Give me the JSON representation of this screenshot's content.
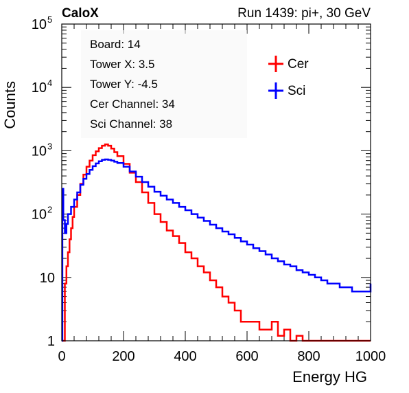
{
  "header": {
    "experiment": "CaloX",
    "run_info": "Run 1439: pi+, 30 GeV"
  },
  "info_box": {
    "lines": [
      "Board: 14",
      "Tower X: 3.5",
      "Tower Y: -4.5",
      "Cer Channel: 34",
      "Sci Channel: 38"
    ]
  },
  "chart_data": {
    "type": "line",
    "xlabel": "Energy HG",
    "ylabel": "Counts",
    "xlim": [
      0,
      1000
    ],
    "ylim": [
      1,
      100000
    ],
    "yscale": "log",
    "xticks": [
      {
        "value": 0,
        "label": "0"
      },
      {
        "value": 200,
        "label": "200"
      },
      {
        "value": 400,
        "label": "400"
      },
      {
        "value": 600,
        "label": "600"
      },
      {
        "value": 800,
        "label": "800"
      },
      {
        "value": 1000,
        "label": "1000"
      }
    ],
    "yticks": [
      {
        "value": 1,
        "label": "1",
        "sup": ""
      },
      {
        "value": 10,
        "label": "10",
        "sup": ""
      },
      {
        "value": 100,
        "label": "10",
        "sup": "2"
      },
      {
        "value": 1000,
        "label": "10",
        "sup": "3"
      },
      {
        "value": 10000,
        "label": "10",
        "sup": "4"
      },
      {
        "value": 100000,
        "label": "10",
        "sup": "5"
      }
    ],
    "legend_position": "top-right",
    "series": [
      {
        "name": "Cer",
        "color": "#ff0000",
        "points": [
          [
            0,
            1
          ],
          [
            5,
            1
          ],
          [
            10,
            8
          ],
          [
            15,
            15
          ],
          [
            20,
            25
          ],
          [
            25,
            40
          ],
          [
            30,
            60
          ],
          [
            35,
            90
          ],
          [
            40,
            130
          ],
          [
            50,
            200
          ],
          [
            60,
            300
          ],
          [
            70,
            420
          ],
          [
            80,
            560
          ],
          [
            90,
            700
          ],
          [
            100,
            850
          ],
          [
            110,
            980
          ],
          [
            120,
            1100
          ],
          [
            130,
            1200
          ],
          [
            140,
            1260
          ],
          [
            150,
            1200
          ],
          [
            160,
            1080
          ],
          [
            170,
            950
          ],
          [
            180,
            820
          ],
          [
            200,
            620
          ],
          [
            220,
            450
          ],
          [
            240,
            320
          ],
          [
            260,
            220
          ],
          [
            280,
            150
          ],
          [
            300,
            100
          ],
          [
            320,
            75
          ],
          [
            340,
            55
          ],
          [
            360,
            45
          ],
          [
            380,
            35
          ],
          [
            400,
            25
          ],
          [
            420,
            20
          ],
          [
            440,
            15
          ],
          [
            460,
            12
          ],
          [
            480,
            9
          ],
          [
            500,
            7
          ],
          [
            520,
            5
          ],
          [
            540,
            4
          ],
          [
            560,
            3
          ],
          [
            580,
            2
          ],
          [
            600,
            2
          ],
          [
            620,
            2
          ],
          [
            640,
            1.5
          ],
          [
            660,
            1.5
          ],
          [
            680,
            2
          ],
          [
            700,
            1.2
          ],
          [
            720,
            1.5
          ],
          [
            740,
            1
          ],
          [
            760,
            1.2
          ],
          [
            780,
            1
          ],
          [
            800,
            1
          ],
          [
            850,
            1
          ],
          [
            900,
            1
          ],
          [
            950,
            1
          ],
          [
            1000,
            1
          ]
        ]
      },
      {
        "name": "Sci",
        "color": "#0000ff",
        "points": [
          [
            0,
            1
          ],
          [
            2,
            250
          ],
          [
            5,
            80
          ],
          [
            10,
            50
          ],
          [
            15,
            70
          ],
          [
            20,
            100
          ],
          [
            30,
            130
          ],
          [
            40,
            170
          ],
          [
            50,
            220
          ],
          [
            60,
            290
          ],
          [
            70,
            360
          ],
          [
            80,
            430
          ],
          [
            90,
            500
          ],
          [
            100,
            570
          ],
          [
            110,
            630
          ],
          [
            120,
            680
          ],
          [
            130,
            720
          ],
          [
            140,
            730
          ],
          [
            150,
            720
          ],
          [
            160,
            700
          ],
          [
            170,
            670
          ],
          [
            180,
            640
          ],
          [
            200,
            560
          ],
          [
            220,
            470
          ],
          [
            240,
            390
          ],
          [
            260,
            320
          ],
          [
            280,
            270
          ],
          [
            300,
            225
          ],
          [
            320,
            195
          ],
          [
            340,
            170
          ],
          [
            360,
            150
          ],
          [
            380,
            130
          ],
          [
            400,
            115
          ],
          [
            420,
            100
          ],
          [
            440,
            88
          ],
          [
            460,
            78
          ],
          [
            480,
            68
          ],
          [
            500,
            60
          ],
          [
            520,
            53
          ],
          [
            540,
            48
          ],
          [
            560,
            42
          ],
          [
            580,
            37
          ],
          [
            600,
            33
          ],
          [
            620,
            29
          ],
          [
            640,
            26
          ],
          [
            660,
            23
          ],
          [
            680,
            20
          ],
          [
            700,
            18
          ],
          [
            720,
            16
          ],
          [
            740,
            15
          ],
          [
            760,
            13
          ],
          [
            780,
            12
          ],
          [
            800,
            11
          ],
          [
            820,
            10
          ],
          [
            840,
            9
          ],
          [
            860,
            8
          ],
          [
            880,
            8
          ],
          [
            900,
            7
          ],
          [
            920,
            7
          ],
          [
            940,
            6
          ],
          [
            960,
            6
          ],
          [
            980,
            6
          ],
          [
            1000,
            8
          ]
        ]
      }
    ]
  }
}
